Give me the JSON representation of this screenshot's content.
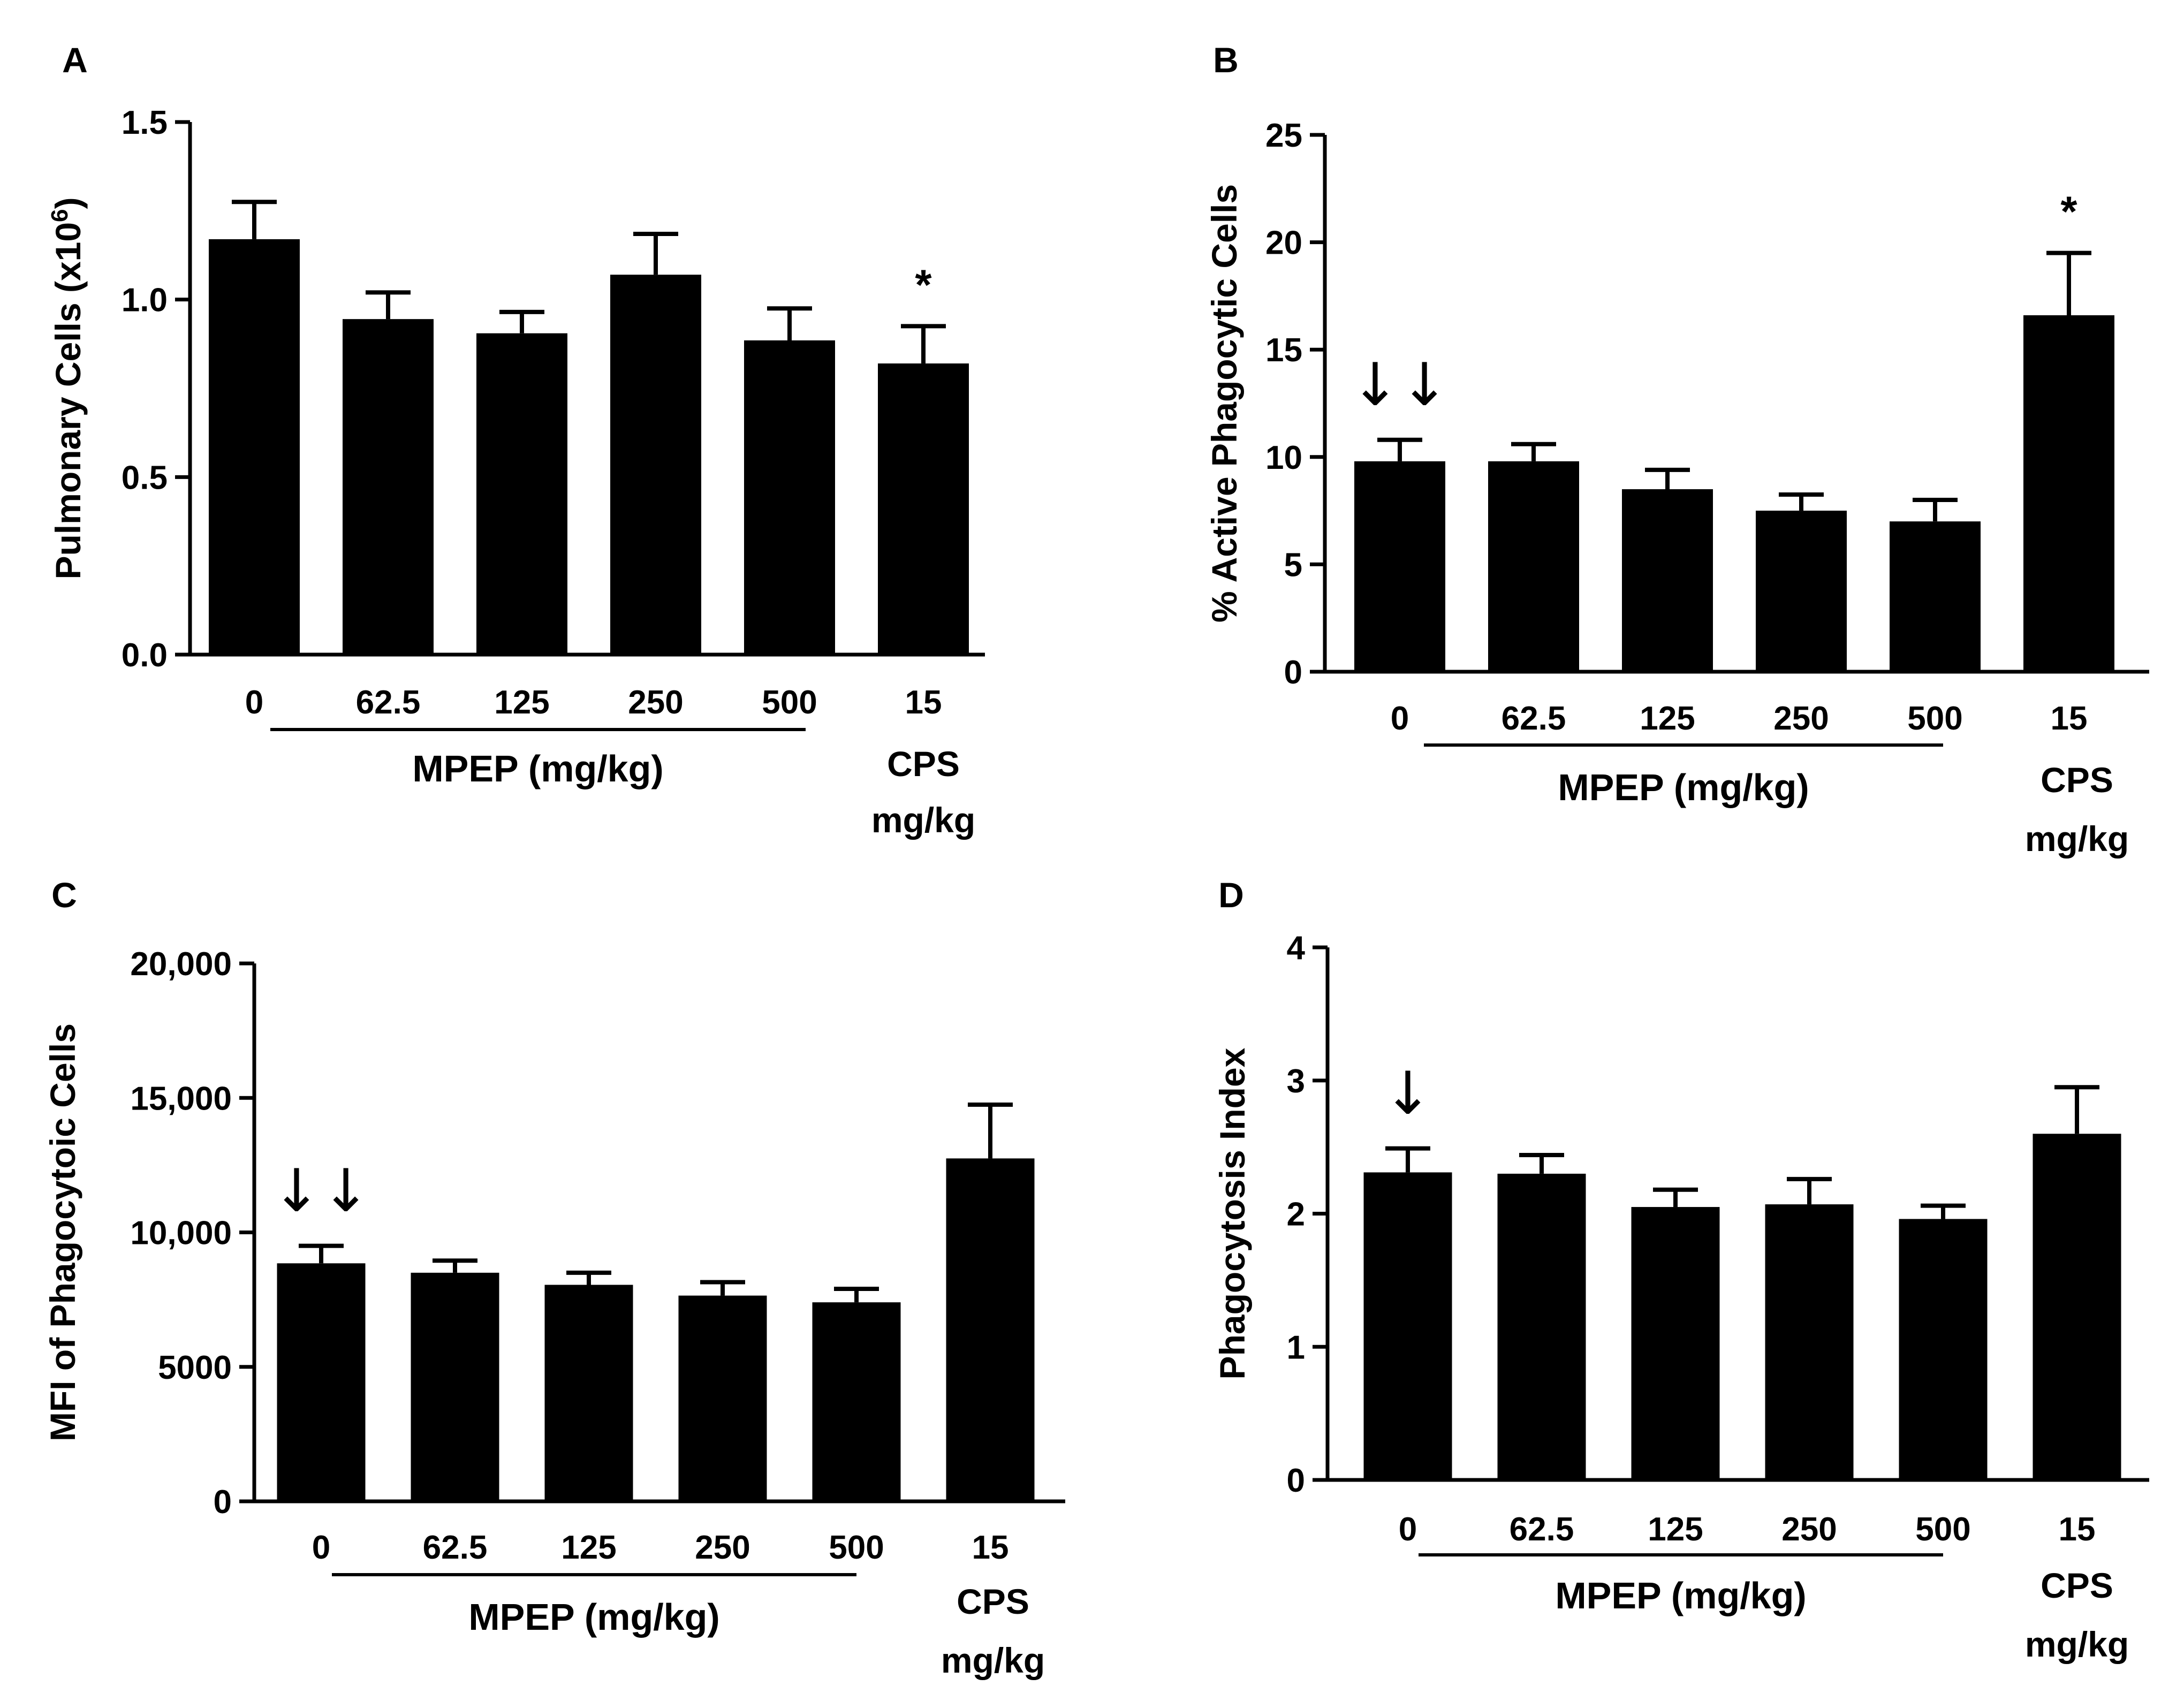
{
  "colors": {
    "bar": "#000000",
    "axis": "#000000",
    "background": "#ffffff"
  },
  "chart_data": [
    {
      "panel": "A",
      "type": "bar",
      "ylabel": "Pulmonary Cells (x10",
      "ylabel_sup": "6",
      "ylabel_end": ")",
      "categories": [
        "0",
        "62.5",
        "125",
        "250",
        "500",
        "15"
      ],
      "values": [
        1.17,
        0.945,
        0.905,
        1.07,
        0.885,
        0.82
      ],
      "errors": [
        0.105,
        0.075,
        0.06,
        0.115,
        0.09,
        0.105
      ],
      "ylim": [
        0,
        1.5
      ],
      "yticks": [
        0,
        0.5,
        1.0,
        1.5
      ],
      "ytick_labels": [
        "0.0",
        "0.5",
        "1.0",
        "1.5"
      ],
      "group_label": "MPEP (mg/kg)",
      "cps_lines": [
        "CPS",
        "mg/kg"
      ],
      "annotations": [
        {
          "category_index": 5,
          "text": "*"
        }
      ]
    },
    {
      "panel": "B",
      "type": "bar",
      "ylabel": "% Active Phagocytic Cells",
      "categories": [
        "0",
        "62.5",
        "125",
        "250",
        "500",
        "15"
      ],
      "values": [
        9.8,
        9.8,
        8.5,
        7.5,
        7.0,
        16.6
      ],
      "errors": [
        1.0,
        0.8,
        0.9,
        0.75,
        1.0,
        2.9
      ],
      "ylim": [
        0,
        25
      ],
      "yticks": [
        0,
        5,
        10,
        15,
        20,
        25
      ],
      "ytick_labels": [
        "0",
        "5",
        "10",
        "15",
        "20",
        "25"
      ],
      "group_label": "MPEP (mg/kg)",
      "cps_lines": [
        "CPS",
        "mg/kg"
      ],
      "annotations": [
        {
          "category_index": 0,
          "text": "↓↓"
        },
        {
          "category_index": 5,
          "text": "*"
        }
      ]
    },
    {
      "panel": "C",
      "type": "bar",
      "ylabel": "MFI of Phagocytoic Cells",
      "categories": [
        "0",
        "62.5",
        "125",
        "250",
        "500",
        "15"
      ],
      "values": [
        8850,
        8500,
        8050,
        7650,
        7400,
        12750
      ],
      "errors": [
        650,
        450,
        450,
        500,
        500,
        2000
      ],
      "ylim": [
        0,
        20000
      ],
      "yticks": [
        0,
        5000,
        10000,
        15000,
        20000
      ],
      "ytick_labels": [
        "0",
        "5000",
        "10,000",
        "15,000",
        "20,000"
      ],
      "group_label": "MPEP (mg/kg)",
      "cps_lines": [
        "CPS",
        "mg/kg"
      ],
      "annotations": [
        {
          "category_index": 0,
          "text": "↓↓"
        }
      ]
    },
    {
      "panel": "D",
      "type": "bar",
      "ylabel": "Phagocytosis Index",
      "categories": [
        "0",
        "62.5",
        "125",
        "250",
        "500",
        "15"
      ],
      "values": [
        2.31,
        2.3,
        2.05,
        2.07,
        1.96,
        2.6
      ],
      "errors": [
        0.18,
        0.14,
        0.13,
        0.19,
        0.1,
        0.35
      ],
      "ylim": [
        0,
        4
      ],
      "yticks": [
        0,
        1,
        2,
        3,
        4
      ],
      "ytick_labels": [
        "0",
        "1",
        "2",
        "3",
        "4"
      ],
      "group_label": "MPEP (mg/kg)",
      "cps_lines": [
        "CPS",
        "mg/kg"
      ],
      "annotations": [
        {
          "category_index": 0,
          "text": "↓"
        }
      ]
    }
  ]
}
